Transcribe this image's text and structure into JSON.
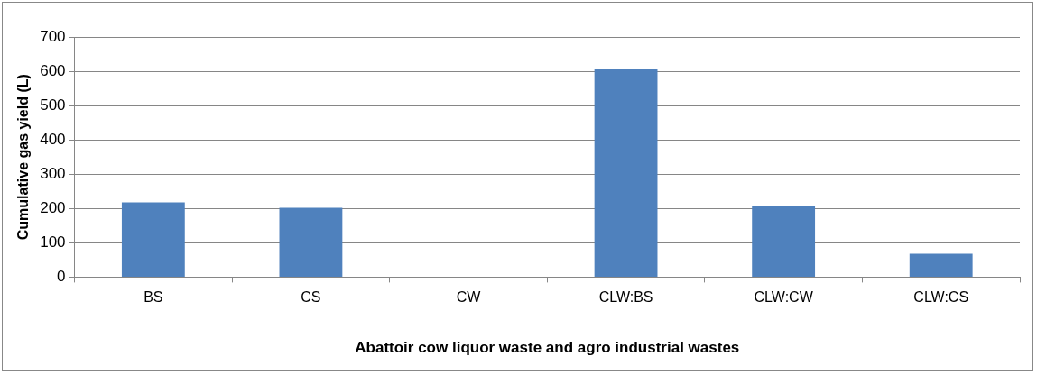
{
  "chart_data": {
    "type": "bar",
    "xlabel": "Abattoir cow liquor waste and agro industrial wastes",
    "ylabel": "Cumulative gas yield (L)",
    "categories": [
      "BS",
      "CS",
      "CW",
      "CLW:BS",
      "CLW:CW",
      "CLW:CS"
    ],
    "series": [
      {
        "color": "#4f81bd",
        "values": [
          218,
          202,
          0,
          607,
          206,
          68
        ]
      }
    ],
    "ylim": [
      0,
      700
    ],
    "yticks": [
      0,
      100,
      200,
      300,
      400,
      500,
      600,
      700
    ],
    "grid": "y",
    "legend": false
  }
}
